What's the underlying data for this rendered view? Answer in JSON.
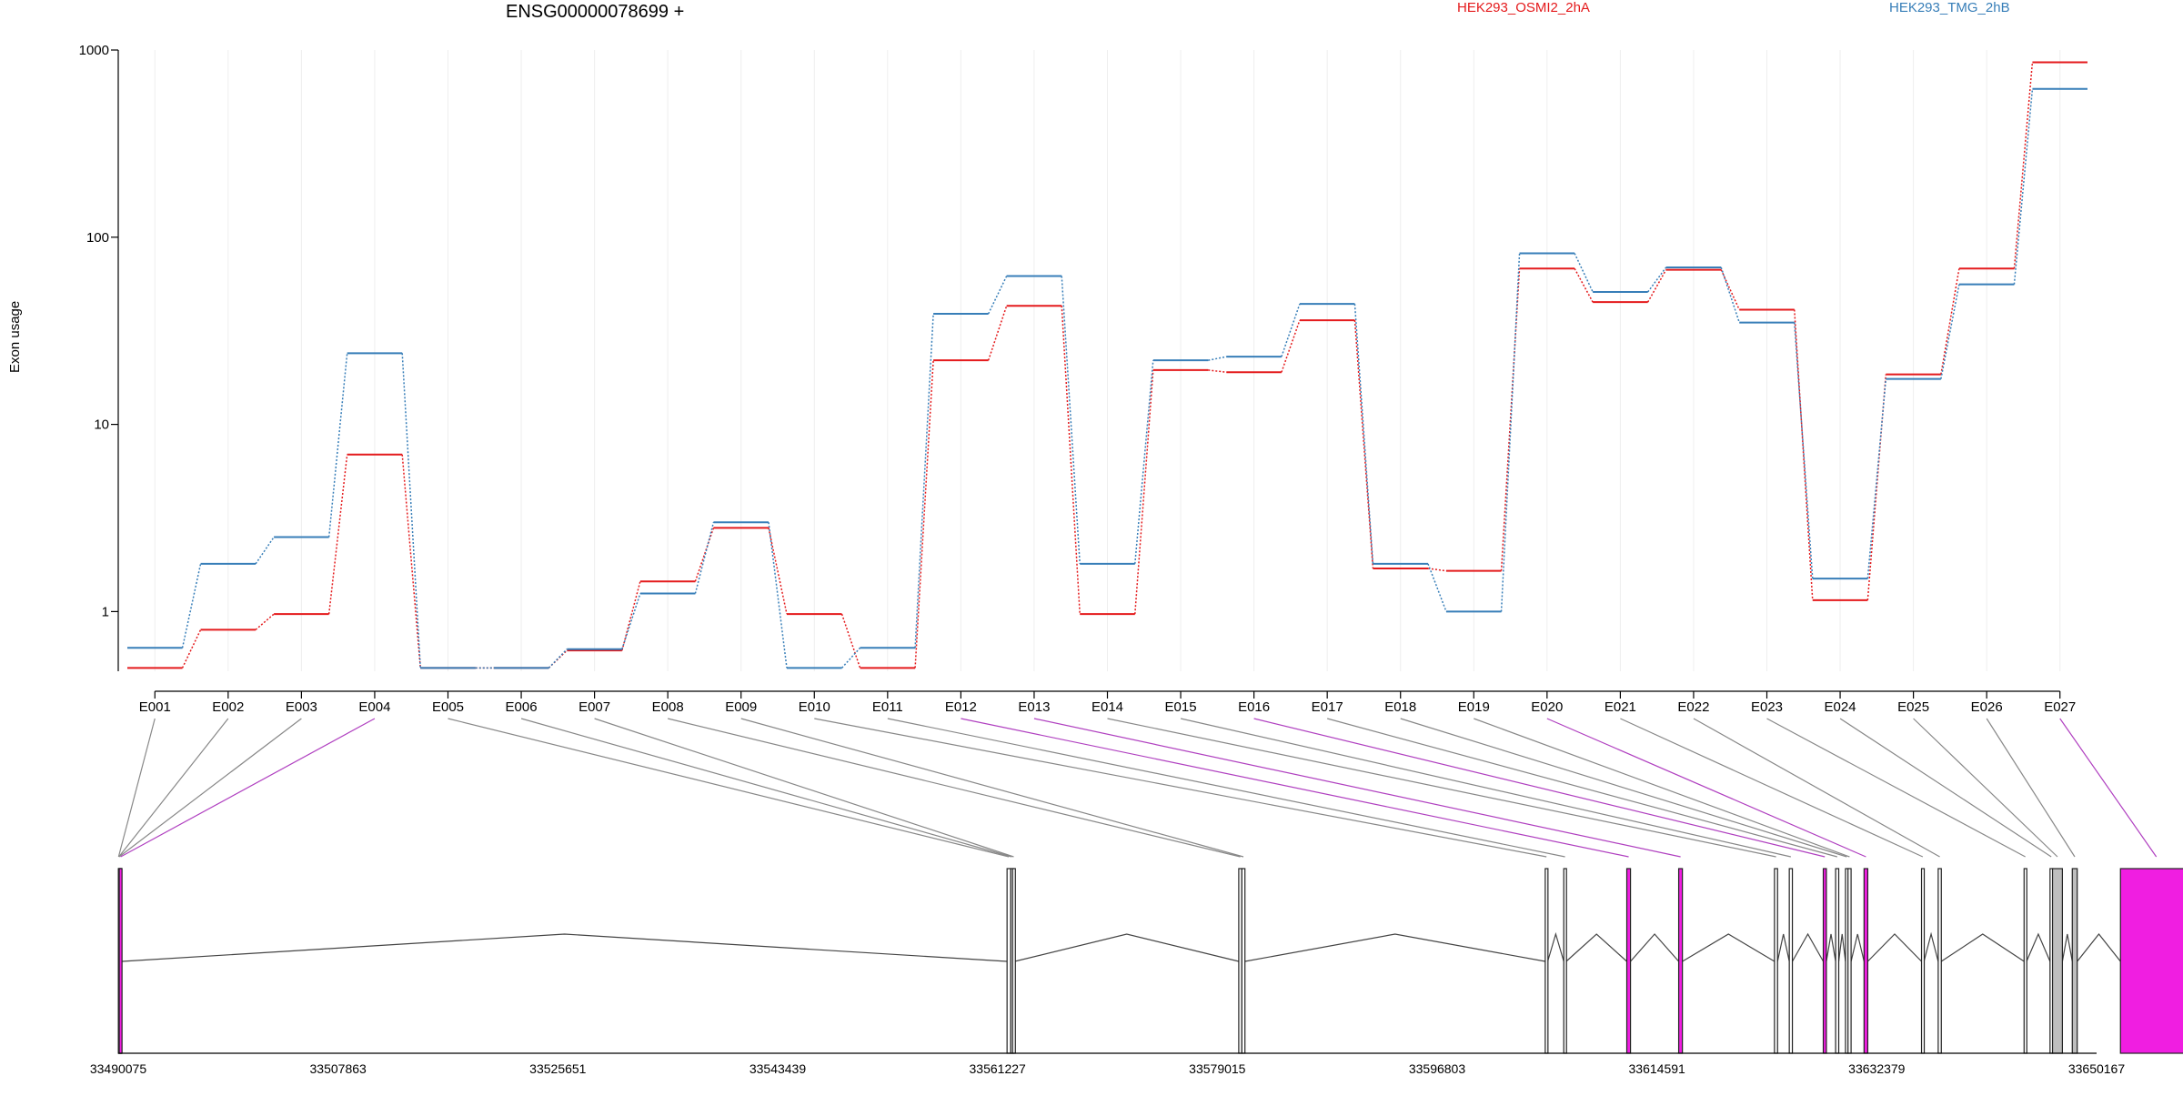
{
  "chart_data": {
    "type": "line",
    "title": "ENSG00000078699 +",
    "ylabel": "Exon usage",
    "yscale": "log",
    "ylim": [
      0.48,
      1000
    ],
    "yticks": [
      "1",
      "10",
      "100",
      "1000"
    ],
    "grid": "vertical lines at exons",
    "legend_position": "top",
    "categories": [
      "E001",
      "E002",
      "E003",
      "E004",
      "E005",
      "E006",
      "E007",
      "E008",
      "E009",
      "E010",
      "E011",
      "E012",
      "E013",
      "E014",
      "E015",
      "E016",
      "E017",
      "E018",
      "E019",
      "E020",
      "E021",
      "E022",
      "E023",
      "E024",
      "E025",
      "E026",
      "E027"
    ],
    "series": [
      {
        "name": "HEK293_OSMI2_2hA",
        "color": "#e41a1c",
        "values": [
          0.5,
          0.8,
          0.97,
          6.9,
          0.5,
          0.5,
          0.62,
          1.45,
          2.8,
          0.97,
          0.5,
          22,
          43,
          0.97,
          19.5,
          19,
          36,
          1.7,
          1.65,
          68,
          45,
          67,
          41,
          1.15,
          18.5,
          68,
          860
        ]
      },
      {
        "name": "HEK293_TMG_2hB",
        "color": "#377eb8",
        "values": [
          0.64,
          1.8,
          2.5,
          24,
          0.5,
          0.5,
          0.63,
          1.25,
          3.0,
          0.5,
          0.64,
          39,
          62,
          1.8,
          22,
          23,
          44,
          1.8,
          1.0,
          82,
          51,
          69,
          35,
          1.5,
          17.5,
          56,
          620
        ]
      }
    ],
    "gene_model": {
      "coordinate_ticks": [
        "33490075",
        "33507863",
        "33525651",
        "33543439",
        "33561227",
        "33579015",
        "33596803",
        "33614591",
        "33632379",
        "33650167"
      ],
      "xlim": [
        33490075,
        33650167
      ],
      "exons": [
        {
          "id": "E001",
          "start": 33490085,
          "end": 33490115,
          "fill": "#ffffff"
        },
        {
          "id": "E002",
          "start": 33490115,
          "end": 33490135,
          "fill": "#ffffff"
        },
        {
          "id": "E003",
          "start": 33490135,
          "end": 33490155,
          "fill": "#ffffff"
        },
        {
          "id": "E004",
          "start": 33490155,
          "end": 33490380,
          "fill": "#f01ee1"
        },
        {
          "id": "E005",
          "start": 33562000,
          "end": 33562300,
          "fill": "#ffffff"
        },
        {
          "id": "E006",
          "start": 33562300,
          "end": 33562450,
          "fill": "#ffffff"
        },
        {
          "id": "E007",
          "start": 33562450,
          "end": 33562620,
          "fill": "#ffffff"
        },
        {
          "id": "E008",
          "start": 33580750,
          "end": 33581000,
          "fill": "#ffffff"
        },
        {
          "id": "E009",
          "start": 33581000,
          "end": 33581250,
          "fill": "#ffffff"
        },
        {
          "id": "E010",
          "start": 33605550,
          "end": 33605750,
          "fill": "#ffffff"
        },
        {
          "id": "E011",
          "start": 33607050,
          "end": 33607250,
          "fill": "#ffffff"
        },
        {
          "id": "E012",
          "start": 33612150,
          "end": 33612450,
          "fill": "#f01ee1"
        },
        {
          "id": "E013",
          "start": 33616350,
          "end": 33616650,
          "fill": "#f01ee1"
        },
        {
          "id": "E014",
          "start": 33624100,
          "end": 33624350,
          "fill": "#ffffff"
        },
        {
          "id": "E015",
          "start": 33625300,
          "end": 33625550,
          "fill": "#ffffff"
        },
        {
          "id": "E016",
          "start": 33628050,
          "end": 33628300,
          "fill": "#f01ee1"
        },
        {
          "id": "E017",
          "start": 33629050,
          "end": 33629300,
          "fill": "#ffffff"
        },
        {
          "id": "E018",
          "start": 33629850,
          "end": 33630050,
          "fill": "#ffffff"
        },
        {
          "id": "E019",
          "start": 33630050,
          "end": 33630300,
          "fill": "#ffffff"
        },
        {
          "id": "E020",
          "start": 33631350,
          "end": 33631650,
          "fill": "#f01ee1"
        },
        {
          "id": "E021",
          "start": 33636000,
          "end": 33636200,
          "fill": "#ffffff"
        },
        {
          "id": "E022",
          "start": 33637350,
          "end": 33637600,
          "fill": "#ffffff"
        },
        {
          "id": "E023",
          "start": 33644300,
          "end": 33644500,
          "fill": "#ffffff"
        },
        {
          "id": "E024",
          "start": 33646400,
          "end": 33646600,
          "fill": "#ffffff"
        },
        {
          "id": "E025",
          "start": 33646600,
          "end": 33647400,
          "fill": "#bebebe"
        },
        {
          "id": "E026",
          "start": 33648200,
          "end": 33648600,
          "fill": "#bebebe"
        },
        {
          "id": "E027",
          "start": 33652100,
          "end": 33657900,
          "fill": "#f01ee1"
        }
      ]
    }
  }
}
